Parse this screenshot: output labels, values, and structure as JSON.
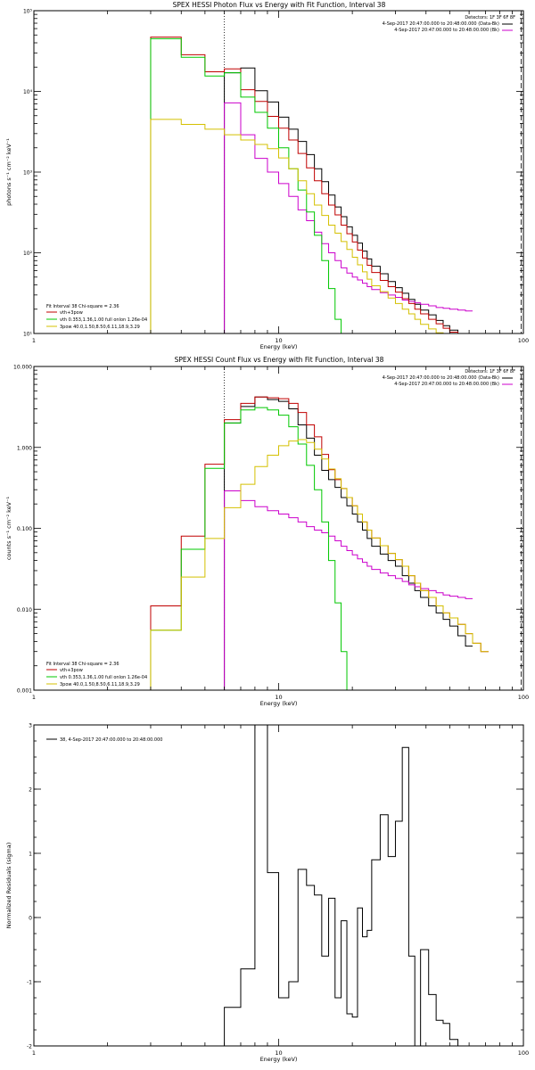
{
  "chart_data": [
    {
      "type": "line",
      "title": "SPEX HESSI Photon Flux vs Energy with Fit Function, Interval 38",
      "xlabel": "Energy (keV)",
      "ylabel": "photons s⁻¹ cm⁻² keV⁻¹",
      "xscale": "log",
      "yscale": "log",
      "xlim": [
        1,
        100
      ],
      "ylim": [
        10,
        100000
      ],
      "x_ticks": [
        {
          "v": 1,
          "label": "1"
        },
        {
          "v": 10,
          "label": "10"
        },
        {
          "v": 100,
          "label": "100"
        }
      ],
      "y_ticks": [
        {
          "v": 10,
          "label": "10¹"
        },
        {
          "v": 100,
          "label": "10²"
        },
        {
          "v": 1000,
          "label": "10³"
        },
        {
          "v": 10000,
          "label": "10⁴"
        },
        {
          "v": 100000,
          "label": "10⁵"
        }
      ],
      "vlines": [
        {
          "x": 6,
          "style": "dotted",
          "color": "#000000"
        },
        {
          "x": 98,
          "style": "dashed",
          "color": "#000000"
        }
      ],
      "info_lines": [
        "Detectors: 1F 3F 6F 8F",
        "4-Sep-2017 20:47:00.000 to 20:48:00.000 (Data-Bk)",
        "4-Sep-2017 20:47:00.000 to 20:48:00.000 (Bk)"
      ],
      "legend_title": "Fit Interval 38   Chi-square = 2.36",
      "legend_placement": "bottom-left",
      "legend": [
        {
          "label": "vth+3pow",
          "color": "#c00000"
        },
        {
          "label": "vth 0.353,1.36,1.00  full onlon 1.26e-04",
          "color": "#00c800"
        },
        {
          "label": "3pow 40.0,1.50,8.50,6.11,18.9,3.29",
          "color": "#d4c000"
        }
      ],
      "edges": [
        3,
        4,
        5,
        6,
        7,
        8,
        9,
        10,
        11,
        12,
        13,
        14,
        15,
        16,
        17,
        18,
        19,
        20,
        21,
        22,
        23,
        24,
        26,
        28,
        30,
        32,
        34,
        36,
        38,
        41,
        44,
        47,
        50,
        54,
        58,
        62,
        67,
        72,
        78,
        84,
        90,
        98
      ],
      "series": [
        {
          "name": "data",
          "color": "#000000",
          "start": 6,
          "values": [
            17000,
            19500,
            10200,
            7400,
            4800,
            3400,
            2400,
            1650,
            1100,
            760,
            520,
            370,
            280,
            210,
            165,
            132,
            105,
            84,
            68,
            55,
            44,
            37,
            31.5,
            26.5,
            23,
            19.5,
            17,
            14.5,
            12.5,
            11,
            9.6,
            8.5
          ]
        },
        {
          "name": "bk",
          "color": "#cc00cc",
          "start": 6,
          "values": [
            7200,
            2900,
            1480,
            1000,
            720,
            500,
            340,
            250,
            180,
            130,
            100,
            80,
            65,
            56,
            50,
            46,
            42,
            38,
            35,
            32,
            30,
            28,
            26,
            25,
            24,
            23,
            22,
            21,
            20.5,
            20,
            19.5,
            19
          ]
        },
        {
          "name": "vth+3pow",
          "color": "#c00000",
          "start": 3,
          "values": [
            47000,
            28500,
            17500,
            19000,
            10500,
            7500,
            4900,
            3500,
            2500,
            1700,
            1130,
            780,
            540,
            390,
            295,
            220,
            172,
            136,
            108,
            86,
            70,
            57,
            45.5,
            38,
            32.5,
            27,
            23.5,
            20,
            17.5,
            15,
            13.2,
            11.6,
            10.4,
            9.3,
            8.4
          ]
        },
        {
          "name": "vth",
          "color": "#00c800",
          "start": 3,
          "values": [
            45000,
            26500,
            15500,
            17000,
            8500,
            5500,
            3500,
            2000,
            1100,
            600,
            320,
            165,
            80,
            36,
            15,
            5
          ]
        },
        {
          "name": "3pow",
          "color": "#d4c000",
          "start": 3,
          "values": [
            4500,
            3900,
            3400,
            2900,
            2500,
            2200,
            1950,
            1500,
            1100,
            780,
            540,
            390,
            290,
            220,
            175,
            138,
            110,
            88,
            71,
            58,
            47,
            39,
            33,
            27.5,
            23.5,
            20,
            17.5,
            15,
            13,
            11.4,
            10.2,
            9.2,
            8.3,
            7.5,
            6.8
          ]
        }
      ]
    },
    {
      "type": "line",
      "title": "SPEX HESSI Count Flux vs Energy with Fit Function, Interval 38",
      "xlabel": "Energy (keV)",
      "ylabel": "counts s⁻¹ cm⁻² keV⁻¹",
      "xscale": "log",
      "yscale": "log",
      "xlim": [
        1,
        100
      ],
      "ylim": [
        0.001,
        10
      ],
      "x_ticks": [
        {
          "v": 1,
          "label": "1"
        },
        {
          "v": 10,
          "label": "10"
        },
        {
          "v": 100,
          "label": "100"
        }
      ],
      "y_ticks": [
        {
          "v": 0.001,
          "label": "0.001"
        },
        {
          "v": 0.01,
          "label": "0.010"
        },
        {
          "v": 0.1,
          "label": "0.100"
        },
        {
          "v": 1,
          "label": "1.000"
        },
        {
          "v": 10,
          "label": "10.000"
        }
      ],
      "vlines": [
        {
          "x": 6,
          "style": "dotted",
          "color": "#000000"
        },
        {
          "x": 98,
          "style": "dashed",
          "color": "#000000"
        }
      ],
      "info_lines": [
        "Detectors: 1F 3F 6F 8F",
        "4-Sep-2017 20:47:00.000 to 20:48:00.000 (Data-Bk)",
        "4-Sep-2017 20:47:00.000 to 20:48:00.000 (Bk)"
      ],
      "legend_title": "Fit Interval 38   Chi-square = 2.36",
      "legend_placement": "bottom-left",
      "legend": [
        {
          "label": "vth+3pow",
          "color": "#c00000"
        },
        {
          "label": "vth 0.353,1.36,1.00  full onlon 1.26e-04",
          "color": "#00c800"
        },
        {
          "label": "3pow 40.0,1.50,8.50,6.11,18.9,3.29",
          "color": "#d4c000"
        }
      ],
      "edges": [
        3,
        4,
        5,
        6,
        7,
        8,
        9,
        10,
        11,
        12,
        13,
        14,
        15,
        16,
        17,
        18,
        19,
        20,
        21,
        22,
        23,
        24,
        26,
        28,
        30,
        32,
        34,
        36,
        38,
        41,
        44,
        47,
        50,
        54,
        58,
        62,
        67,
        72,
        78,
        84,
        90,
        98
      ],
      "series": [
        {
          "name": "data",
          "color": "#000000",
          "start": 6,
          "values": [
            2.0,
            3.2,
            4.2,
            3.9,
            3.7,
            3.0,
            1.9,
            1.3,
            0.8,
            0.52,
            0.4,
            0.32,
            0.24,
            0.19,
            0.15,
            0.12,
            0.095,
            0.075,
            0.06,
            0.048,
            0.04,
            0.034,
            0.026,
            0.021,
            0.017,
            0.014,
            0.011,
            0.009,
            0.0075,
            0.0062,
            0.0047,
            0.0035
          ]
        },
        {
          "name": "bk",
          "color": "#cc00cc",
          "start": 6,
          "values": [
            0.29,
            0.22,
            0.185,
            0.165,
            0.15,
            0.135,
            0.12,
            0.105,
            0.095,
            0.088,
            0.08,
            0.07,
            0.06,
            0.053,
            0.047,
            0.042,
            0.038,
            0.034,
            0.031,
            0.028,
            0.026,
            0.024,
            0.022,
            0.02,
            0.019,
            0.018,
            0.017,
            0.016,
            0.015,
            0.0145,
            0.014,
            0.0135
          ]
        },
        {
          "name": "vth+3pow",
          "color": "#c00000",
          "start": 3,
          "values": [
            0.011,
            0.08,
            0.62,
            2.2,
            3.5,
            4.2,
            4.1,
            4.0,
            3.5,
            2.7,
            1.9,
            1.35,
            0.82,
            0.53,
            0.4,
            0.31,
            0.24,
            0.19,
            0.15,
            0.12,
            0.095,
            0.076,
            0.061,
            0.049,
            0.041,
            0.034,
            0.026,
            0.021,
            0.017,
            0.014,
            0.011,
            0.009,
            0.0078,
            0.0065,
            0.005,
            0.0038,
            0.003
          ]
        },
        {
          "name": "vth",
          "color": "#00c800",
          "start": 3,
          "values": [
            0.0055,
            0.055,
            0.55,
            2.0,
            2.9,
            3.1,
            2.9,
            2.5,
            1.8,
            1.1,
            0.6,
            0.3,
            0.12,
            0.04,
            0.012,
            0.003,
            0.0005
          ]
        },
        {
          "name": "3pow",
          "color": "#d4c000",
          "start": 3,
          "values": [
            0.0055,
            0.025,
            0.075,
            0.18,
            0.35,
            0.58,
            0.8,
            1.05,
            1.2,
            1.25,
            1.15,
            0.95,
            0.72,
            0.54,
            0.41,
            0.31,
            0.24,
            0.19,
            0.15,
            0.12,
            0.095,
            0.076,
            0.061,
            0.049,
            0.041,
            0.034,
            0.026,
            0.021,
            0.017,
            0.014,
            0.011,
            0.009,
            0.0078,
            0.0065,
            0.005,
            0.0038,
            0.003
          ]
        }
      ]
    },
    {
      "type": "line",
      "title": "",
      "xlabel": "Energy (keV)",
      "ylabel": "Normalized Residuals (sigma)",
      "xscale": "log",
      "yscale": "linear",
      "xlim": [
        1,
        100
      ],
      "ylim": [
        -2,
        3
      ],
      "x_ticks": [
        {
          "v": 1,
          "label": "1"
        },
        {
          "v": 10,
          "label": "10"
        },
        {
          "v": 100,
          "label": "100"
        }
      ],
      "y_ticks": [
        {
          "v": -2,
          "label": "-2"
        },
        {
          "v": -1,
          "label": "-1"
        },
        {
          "v": 0,
          "label": "0"
        },
        {
          "v": 1,
          "label": "1"
        },
        {
          "v": 2,
          "label": "2"
        },
        {
          "v": 3,
          "label": "3"
        }
      ],
      "vlines": [],
      "info_lines": [],
      "legend_title": "",
      "legend_placement": "top-left",
      "legend": [
        {
          "label": "38,  4-Sep-2017 20:47:00.000 to 20:48:00.000",
          "color": "#000000"
        }
      ],
      "edges": [
        6,
        7,
        8,
        9,
        10,
        11,
        12,
        13,
        14,
        15,
        16,
        17,
        18,
        19,
        20,
        21,
        22,
        23,
        24,
        26,
        28,
        30,
        32,
        34,
        36,
        38,
        41,
        44,
        47,
        50,
        54,
        58,
        62,
        67,
        72,
        78,
        84,
        90,
        98
      ],
      "series": [
        {
          "name": "residuals",
          "color": "#000000",
          "start": 6,
          "values": [
            -1.4,
            -0.8,
            3.0,
            0.7,
            -1.25,
            -1.0,
            0.75,
            0.5,
            0.35,
            -0.6,
            0.3,
            -1.25,
            -0.05,
            -1.5,
            -1.55,
            0.15,
            -0.3,
            -0.2,
            0.9,
            1.6,
            0.95,
            1.5,
            2.65,
            -0.6,
            -2.0,
            -0.5,
            -1.2,
            -1.6,
            -1.65,
            -1.9,
            -2.0,
            -2.0,
            -2.0,
            -2.0,
            -2.0,
            -2.0,
            -2.0,
            -2.0
          ]
        }
      ]
    }
  ]
}
